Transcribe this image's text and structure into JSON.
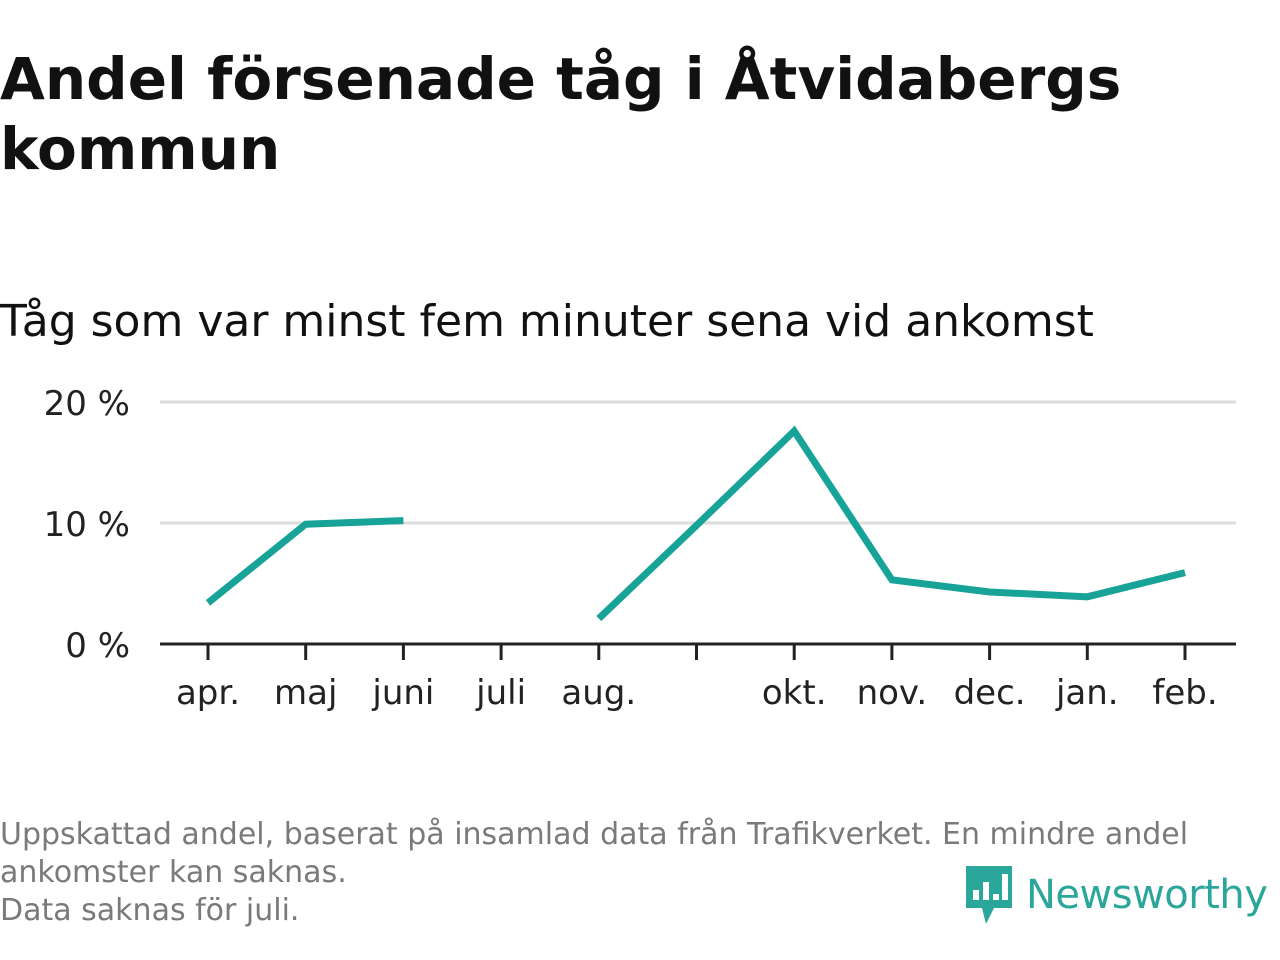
{
  "title": "Andel försenade tåg i Åtvidabergs kommun",
  "subtitle": "Tåg som var minst fem minuter sena vid ankomst",
  "footnote": {
    "line1": "Uppskattad andel, baserat på insamlad data från Trafikverket. En mindre andel",
    "line2": "ankomster kan saknas.",
    "line3": "Data saknas för juli."
  },
  "brand": {
    "name": "Newsworthy",
    "icon": "newsworthy-logo-icon",
    "color": "#2aa69a"
  },
  "chart_data": {
    "type": "line",
    "title": "Andel försenade tåg i Åtvidabergs kommun",
    "subtitle": "Tåg som var minst fem minuter sena vid ankomst",
    "categories": [
      "apr.",
      "maj",
      "juni",
      "juli",
      "aug.",
      "",
      "okt.",
      "nov.",
      "dec.",
      "jan.",
      "feb."
    ],
    "series": [
      {
        "values": [
          3.4,
          9.9,
          10.2,
          null,
          2.1,
          9.8,
          17.6,
          5.3,
          4.3,
          3.9,
          5.9
        ],
        "color": "#17a398"
      }
    ],
    "yticks": [
      0,
      10,
      20
    ],
    "ytick_labels": [
      "0 %",
      "10 %",
      "20 %"
    ],
    "ylim": [
      0,
      20
    ],
    "xlabel": "",
    "ylabel": "",
    "grid": true,
    "legend": "none"
  }
}
